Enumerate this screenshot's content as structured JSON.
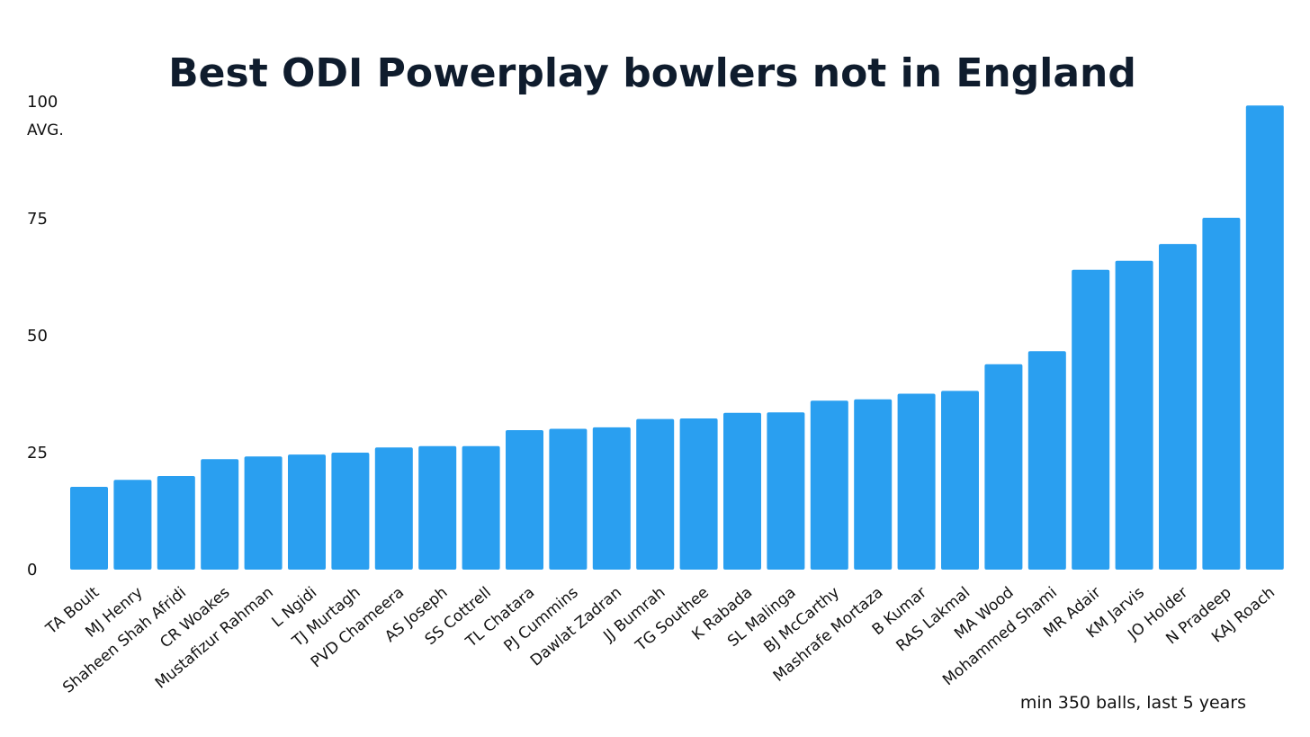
{
  "chart_data": {
    "type": "bar",
    "title": "Best ODI Powerplay bowlers not in England",
    "ylabel": "AVG.",
    "xlabel": "",
    "ylim": [
      0,
      100
    ],
    "yticks": [
      "0",
      "25",
      "50",
      "75",
      "100"
    ],
    "grid": false,
    "note": "min 350 balls, last 5 years",
    "bar_color": "#2a9ff0",
    "categories": [
      "TA Boult",
      "MJ Henry",
      "Shaheen Shah Afridi",
      "CR Woakes",
      "Mustafizur Rahman",
      "L Ngidi",
      "TJ Murtagh",
      "PVD Chameera",
      "AS Joseph",
      "SS Cottrell",
      "TL Chatara",
      "PJ Cummins",
      "Dawlat Zadran",
      "JJ Bumrah",
      "TG Southee",
      "K Rabada",
      "SL Malinga",
      "BJ McCarthy",
      "Mashrafe Mortaza",
      "B Kumar",
      "RAS Lakmal",
      "MA Wood",
      "Mohammed Shami",
      "MR Adair",
      "KM Jarvis",
      "JO Holder",
      "N Pradeep",
      "KAJ Roach"
    ],
    "values": [
      17.7,
      19.2,
      20.0,
      23.6,
      24.2,
      24.6,
      25.0,
      26.1,
      26.4,
      26.4,
      29.8,
      30.1,
      30.4,
      32.2,
      32.3,
      33.5,
      33.6,
      36.1,
      36.4,
      37.6,
      38.2,
      43.9,
      46.7,
      64.1,
      66.0,
      69.6,
      75.2,
      99.2
    ]
  }
}
